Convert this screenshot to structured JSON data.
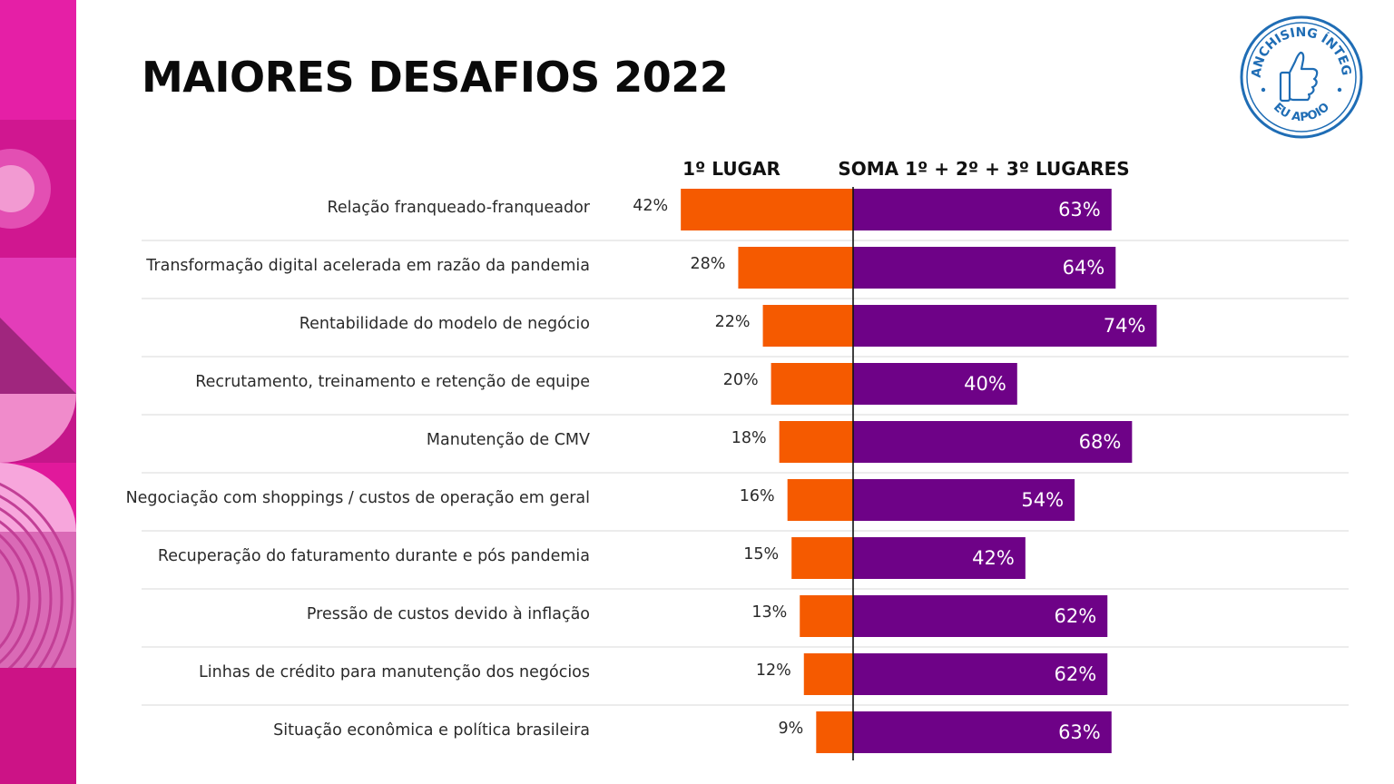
{
  "title": "MAIORES DESAFIOS 2022",
  "badge": {
    "text_top": "FRANCHISING ÍNTEGRO",
    "text_bottom": "EU APOIO",
    "icon": "thumbs-up-icon"
  },
  "colors": {
    "left_bar": "#F55A00",
    "right_bar": "#6E0287",
    "deco_magenta": "#E1199B",
    "badge_blue": "#1F6DB5"
  },
  "chart_data": {
    "type": "bar",
    "orientation": "horizontal",
    "title": "MAIORES DESAFIOS 2022",
    "categories": [
      "Relação franqueado-franqueador",
      "Transformação digital acelerada em razão da pandemia",
      "Rentabilidade do modelo de negócio",
      "Recrutamento, treinamento e retenção de equipe",
      "Manutenção de CMV",
      "Negociação com shoppings / custos de operação em geral",
      "Recuperação do faturamento durante e pós pandemia",
      "Pressão de custos devido à inflação",
      "Linhas de crédito para manutenção dos negócios",
      "Situação econômica e política brasileira"
    ],
    "series": [
      {
        "name": "1º LUGAR",
        "values": [
          42,
          28,
          22,
          20,
          18,
          16,
          15,
          13,
          12,
          9
        ],
        "labels": [
          "42%",
          "28%",
          "22%",
          "20%",
          "18%",
          "16%",
          "15%",
          "13%",
          "12%",
          "9%"
        ]
      },
      {
        "name": "SOMA 1º + 2º + 3º LUGARES",
        "values": [
          63,
          64,
          74,
          40,
          68,
          54,
          42,
          62,
          62,
          63
        ],
        "labels": [
          "63%",
          "64%",
          "74%",
          "40%",
          "68%",
          "54%",
          "42%",
          "62%",
          "62%",
          "63%"
        ]
      }
    ]
  }
}
